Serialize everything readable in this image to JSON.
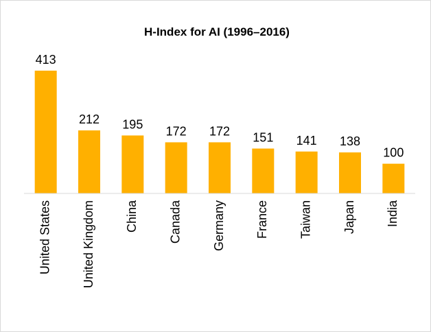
{
  "chart_data": {
    "type": "bar",
    "title": "H-Index for AI (1996–2016)",
    "categories": [
      "United States",
      "United Kingdom",
      "China",
      "Canada",
      "Germany",
      "France",
      "Taiwan",
      "Japan",
      "India"
    ],
    "values": [
      413,
      212,
      195,
      172,
      172,
      151,
      141,
      138,
      100
    ],
    "color": "#ffb000",
    "data_labels": true
  }
}
